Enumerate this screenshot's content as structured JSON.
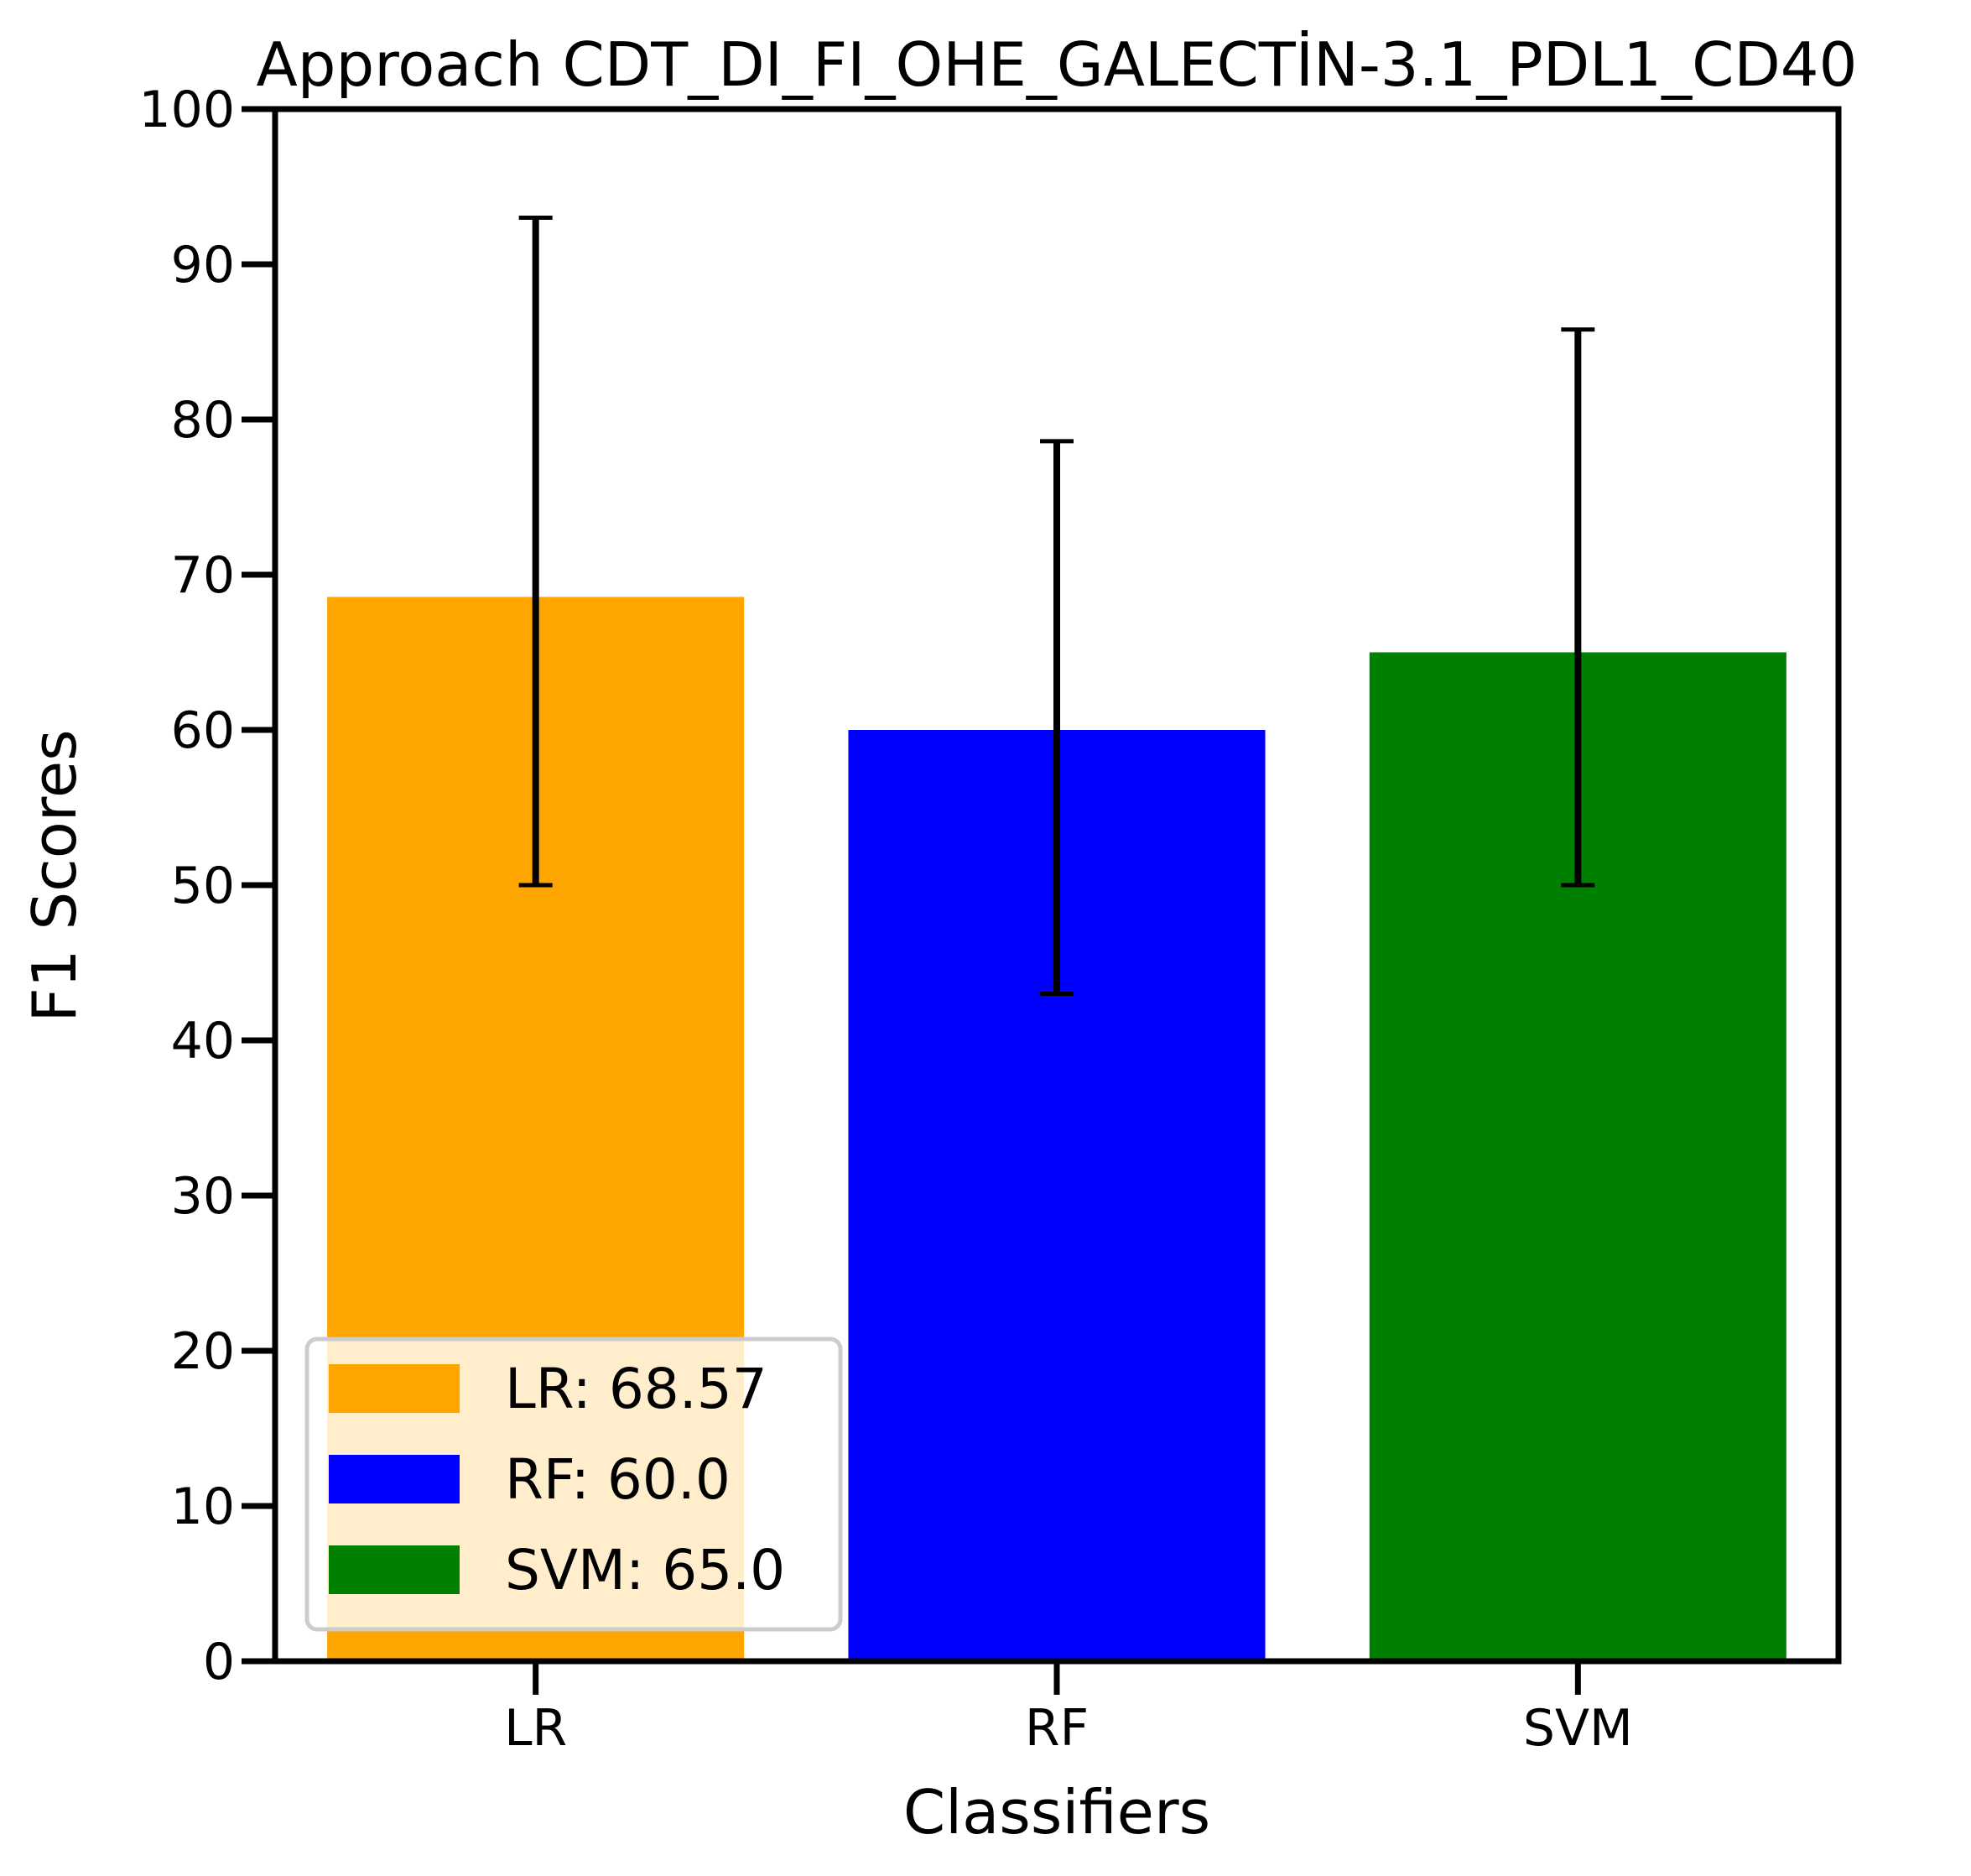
{
  "chart_data": {
    "type": "bar",
    "title": "Approach CDT_DI_FI_OHE_GALECTİN-3.1_PDL1_CD40",
    "xlabel": "Classifiers",
    "ylabel": "F1 Scores",
    "categories": [
      "LR",
      "RF",
      "SVM"
    ],
    "values": [
      68.57,
      60.0,
      65.0
    ],
    "error_low": [
      50.0,
      43.0,
      50.0
    ],
    "error_high": [
      93.0,
      78.6,
      85.8
    ],
    "colors": [
      "#ffa500",
      "#0000ff",
      "#008000"
    ],
    "ylim": [
      0,
      100
    ],
    "yticks": [
      0,
      10,
      20,
      30,
      40,
      50,
      60,
      70,
      80,
      90,
      100
    ],
    "grid": false,
    "legend": {
      "placement": "lower-left",
      "entries": [
        "LR: 68.57",
        "RF: 60.0",
        "SVM: 65.0"
      ]
    }
  }
}
